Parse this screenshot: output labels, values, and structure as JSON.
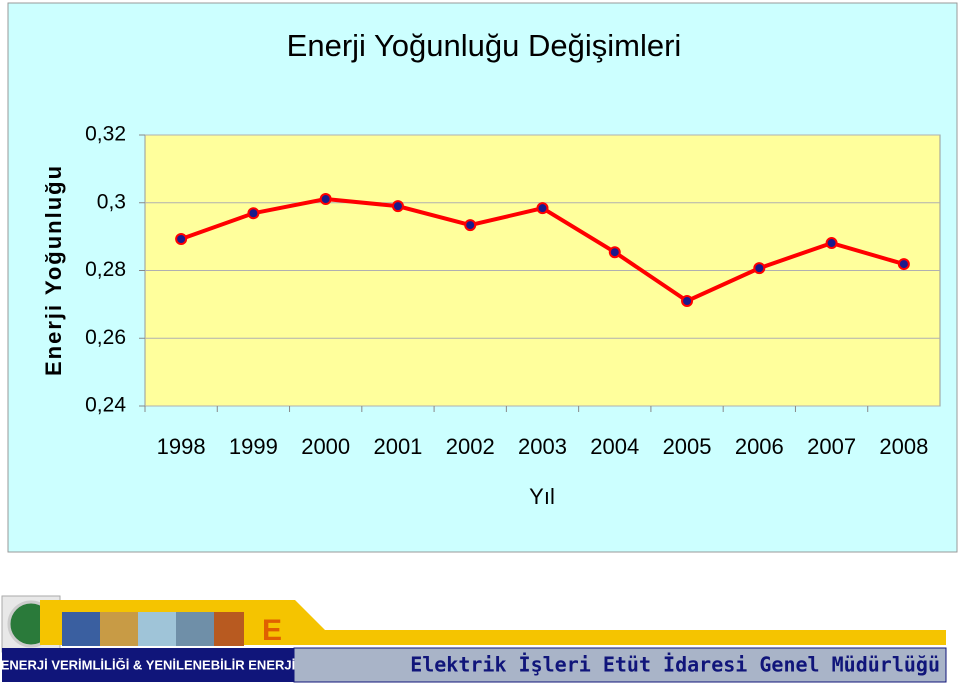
{
  "chart_data": {
    "type": "line",
    "title": "Enerji Yoğunluğu Değişimleri",
    "y_label": "Enerji Yoğunluğu",
    "x_label": "Yıl",
    "categories": [
      "1998",
      "1999",
      "2000",
      "2001",
      "2002",
      "2003",
      "2004",
      "2005",
      "2006",
      "2007",
      "2008"
    ],
    "values": [
      0.2893,
      0.2969,
      0.3011,
      0.299,
      0.2934,
      0.2984,
      0.2854,
      0.271,
      0.2807,
      0.2881,
      0.2819
    ],
    "color": "#ff0000",
    "marker_color": "#1a1a8c",
    "ylim": [
      0.24,
      0.32
    ],
    "yticks": [
      {
        "value": 0.24,
        "label": "0,24"
      },
      {
        "value": 0.26,
        "label": "0,26"
      },
      {
        "value": 0.28,
        "label": "0,28"
      },
      {
        "value": 0.3,
        "label": "0,3"
      },
      {
        "value": 0.32,
        "label": "0,32"
      }
    ],
    "grid": true
  },
  "footer": {
    "left": "ENERJİ VERİMLİLİĞİ & YENİLENEBİLİR ENERJİ",
    "right": "Elektrik İşleri Etüt İdaresi Genel Müdürlüğü"
  }
}
